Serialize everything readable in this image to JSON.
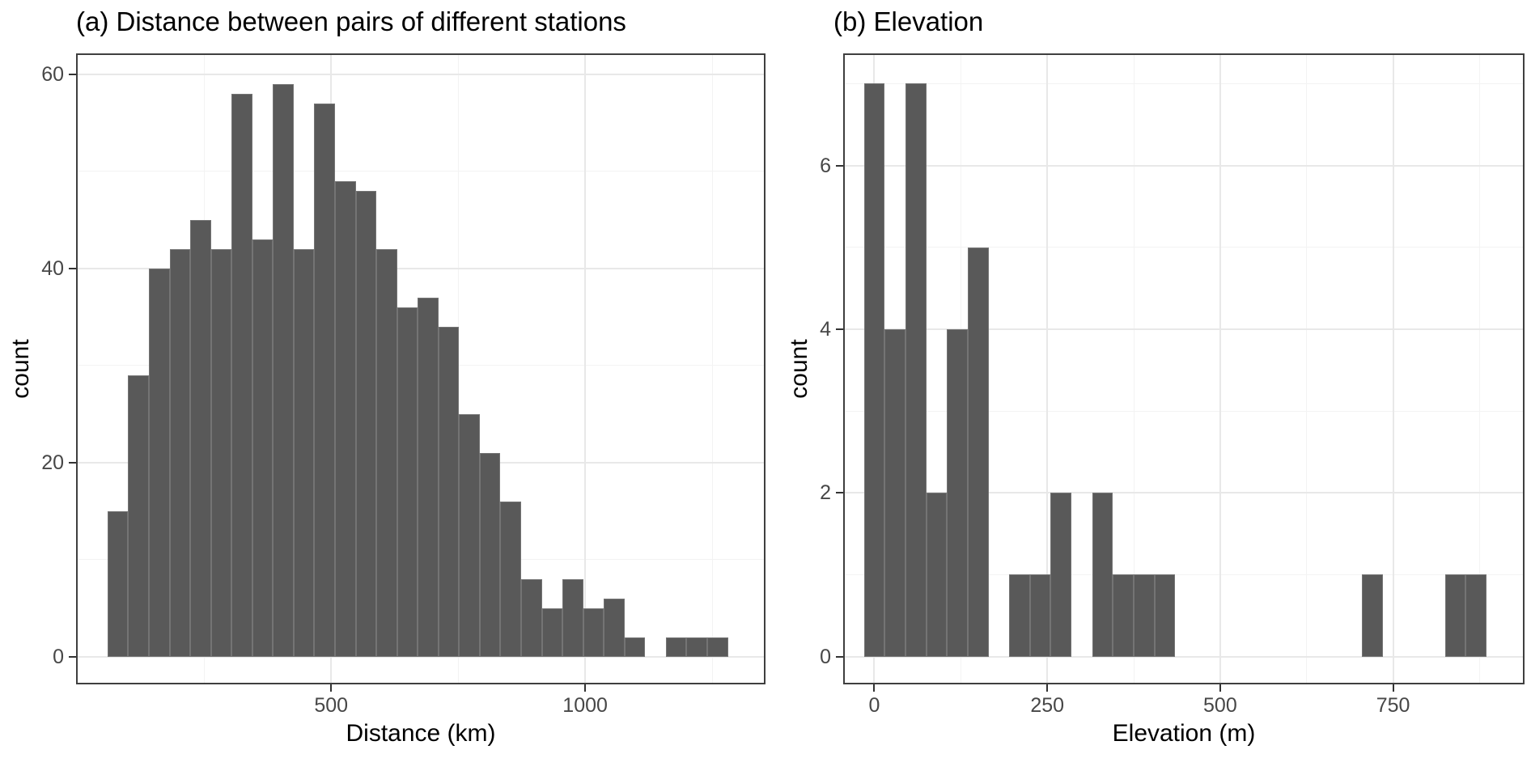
{
  "figure": {
    "background": "#ffffff"
  },
  "colors": {
    "bar_fill": "#595959",
    "bar_border": "#747474",
    "grid_major": "#e8e8e8",
    "grid_minor": "#f3f3f3",
    "panel_border": "#3f3f3f",
    "tick_mark": "#333333",
    "tick_label": "#474747",
    "text": "#000000"
  },
  "chart_data": [
    {
      "type": "bar",
      "subtype": "histogram",
      "title": "(a) Distance between pairs of different stations",
      "xlabel": "Distance (km)",
      "ylabel": "count",
      "bin_start": 60,
      "bin_width": 40.7,
      "counts": [
        15,
        29,
        40,
        42,
        45,
        42,
        58,
        43,
        59,
        42,
        57,
        49,
        48,
        42,
        36,
        37,
        34,
        25,
        21,
        16,
        8,
        5,
        8,
        5,
        6,
        2,
        0,
        2,
        2,
        2
      ],
      "x_ticks": [
        500,
        1000
      ],
      "x_minor": [
        250,
        750,
        1250
      ],
      "y_ticks": [
        0,
        20,
        40,
        60
      ],
      "y_minor": [
        10,
        30,
        50
      ],
      "xlim": [
        -2,
        1355
      ],
      "ylim": [
        -2.85,
        62.15
      ],
      "grid": true,
      "legend": "none"
    },
    {
      "type": "bar",
      "subtype": "histogram",
      "title": "(b) Elevation",
      "xlabel": "Elevation (m)",
      "ylabel": "count",
      "bin_start": -15,
      "bin_width": 30,
      "counts": [
        7,
        4,
        7,
        2,
        4,
        5,
        0,
        1,
        1,
        2,
        0,
        2,
        1,
        1,
        1,
        0,
        0,
        0,
        0,
        0,
        0,
        0,
        0,
        0,
        1,
        0,
        0,
        0,
        1,
        1
      ],
      "x_ticks": [
        0,
        250,
        500,
        750
      ],
      "x_minor": [
        125,
        375,
        625,
        875
      ],
      "y_ticks": [
        0,
        2,
        4,
        6
      ],
      "y_minor": [
        1,
        3,
        5,
        7
      ],
      "xlim": [
        -45,
        940
      ],
      "ylim": [
        -0.34,
        7.37
      ],
      "grid": true,
      "legend": "none"
    }
  ]
}
